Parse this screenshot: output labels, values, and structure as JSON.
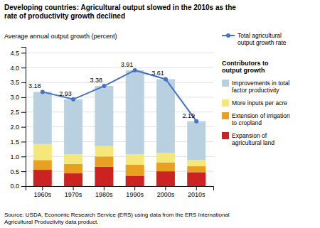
{
  "chart_data": {
    "type": "bar",
    "stacked": true,
    "title": "Developing countries: Agricultural output slowed in the 2010s as the\nrate of productivity growth declined",
    "ylabel": "Average annual output growth (percent)",
    "source": "Source: USDA, Economic Research Service (ERS) using data from the ERS International\nAgricultural Productivity data product.",
    "legend_title": "Contributors to\noutput growth",
    "categories": [
      "1960s",
      "1970s",
      "1980s",
      "1990s",
      "2000s",
      "2010s"
    ],
    "series": [
      {
        "name": "Expansion of\nagricultural land",
        "color": "#cc2222",
        "values": [
          0.55,
          0.43,
          0.65,
          0.35,
          0.5,
          0.47
        ]
      },
      {
        "name": "Extension of irrigation\nto cropland",
        "color": "#e8a020",
        "values": [
          0.33,
          0.32,
          0.35,
          0.37,
          0.3,
          0.2
        ]
      },
      {
        "name": "More inputs per acre",
        "color": "#f5e87a",
        "values": [
          0.54,
          0.33,
          0.35,
          0.35,
          0.32,
          0.21
        ]
      },
      {
        "name": "Improvements in total\nfactor productivity",
        "color": "#b8d0e0",
        "values": [
          1.76,
          1.85,
          2.03,
          2.84,
          2.49,
          1.31
        ]
      },
      {
        "name": "Total agricultural\noutput growth rate",
        "type": "line",
        "color": "#4472c4",
        "marker": "circle",
        "data_labels": true,
        "values": [
          3.18,
          2.93,
          3.38,
          3.91,
          3.61,
          2.19
        ]
      }
    ],
    "ylim": [
      0,
      4.7
    ],
    "yticks": [
      {
        "value": 0.0,
        "label": "0.0"
      },
      0.5,
      {
        "value": 1.0,
        "label": "1.0"
      },
      1.5,
      {
        "value": 2.0,
        "label": "2.0"
      },
      2.5,
      {
        "value": 3.0,
        "label": "3.0"
      },
      3.5,
      {
        "value": 4.0,
        "label": "4.0"
      },
      4.5
    ],
    "grid": true,
    "legend": "right"
  }
}
